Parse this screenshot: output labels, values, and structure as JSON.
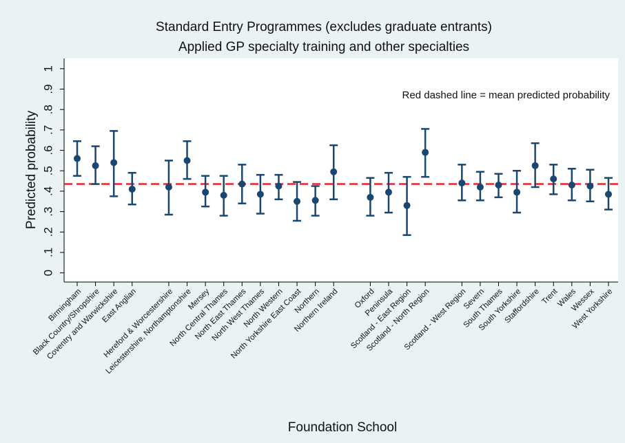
{
  "chart_data": {
    "type": "errorbar",
    "title": "Standard Entry Programmes (excludes graduate entrants)",
    "subtitle": "Applied GP specialty training and other specialties",
    "x_label": "Foundation School",
    "y_label": "Predicted probability",
    "annotation": "Red dashed line = mean predicted probability",
    "categories": [
      "Birmingham",
      "Black Country/Shropshire",
      "Coventry and Warwickshire",
      "East Anglian",
      null,
      "Hereford & Worcestershire",
      "Leicestershire, Northamptonshire",
      "Mersey",
      "North Central Thames",
      "North East Thames",
      "North West Thames",
      "North Western",
      "North Yorkshire East Coast",
      "Northern",
      "Northern Ireland",
      null,
      "Oxford",
      "Peninsula",
      "Scotland - East Region",
      "Scotland - North Region",
      null,
      "Scotland - West Region",
      "Severn",
      "South Thames",
      "South Yorkshire",
      "Staffordshire",
      "Trent",
      "Wales",
      "Wessex",
      "West Yorkshire"
    ],
    "values": [
      0.56,
      0.525,
      0.54,
      0.41,
      null,
      0.42,
      0.55,
      0.395,
      0.38,
      0.435,
      0.385,
      0.425,
      0.35,
      0.355,
      0.495,
      null,
      0.37,
      0.395,
      0.33,
      0.59,
      null,
      0.44,
      0.42,
      0.43,
      0.395,
      0.525,
      0.46,
      0.43,
      0.425,
      0.385
    ],
    "lower": [
      0.475,
      0.435,
      0.375,
      0.335,
      null,
      0.285,
      0.46,
      0.325,
      0.28,
      0.34,
      0.29,
      0.36,
      0.255,
      0.28,
      0.36,
      null,
      0.28,
      0.295,
      0.185,
      0.47,
      null,
      0.355,
      0.355,
      0.37,
      0.295,
      0.42,
      0.385,
      0.355,
      0.35,
      0.31
    ],
    "upper": [
      0.645,
      0.62,
      0.695,
      0.49,
      null,
      0.55,
      0.645,
      0.475,
      0.475,
      0.53,
      0.48,
      0.48,
      0.445,
      0.425,
      0.625,
      null,
      0.465,
      0.49,
      0.47,
      0.705,
      null,
      0.53,
      0.495,
      0.485,
      0.5,
      0.635,
      0.53,
      0.51,
      0.505,
      0.465
    ],
    "color": "#1a476f",
    "mean": 0.435,
    "mean_color": "#e8222b",
    "ylim": [
      -0.045,
      1.05
    ],
    "yticks": [
      0,
      {
        "value": 0.1,
        "label": ".1"
      },
      {
        "value": 0.2,
        "label": ".2"
      },
      {
        "value": 0.3,
        "label": ".3"
      },
      {
        "value": 0.4,
        "label": ".4"
      },
      {
        "value": 0.5,
        "label": ".5"
      },
      {
        "value": 0.6,
        "label": ".6"
      },
      {
        "value": 0.7,
        "label": ".7"
      },
      {
        "value": 0.8,
        "label": ".8"
      },
      {
        "value": 0.9,
        "label": ".9"
      },
      1
    ],
    "grid": false
  }
}
